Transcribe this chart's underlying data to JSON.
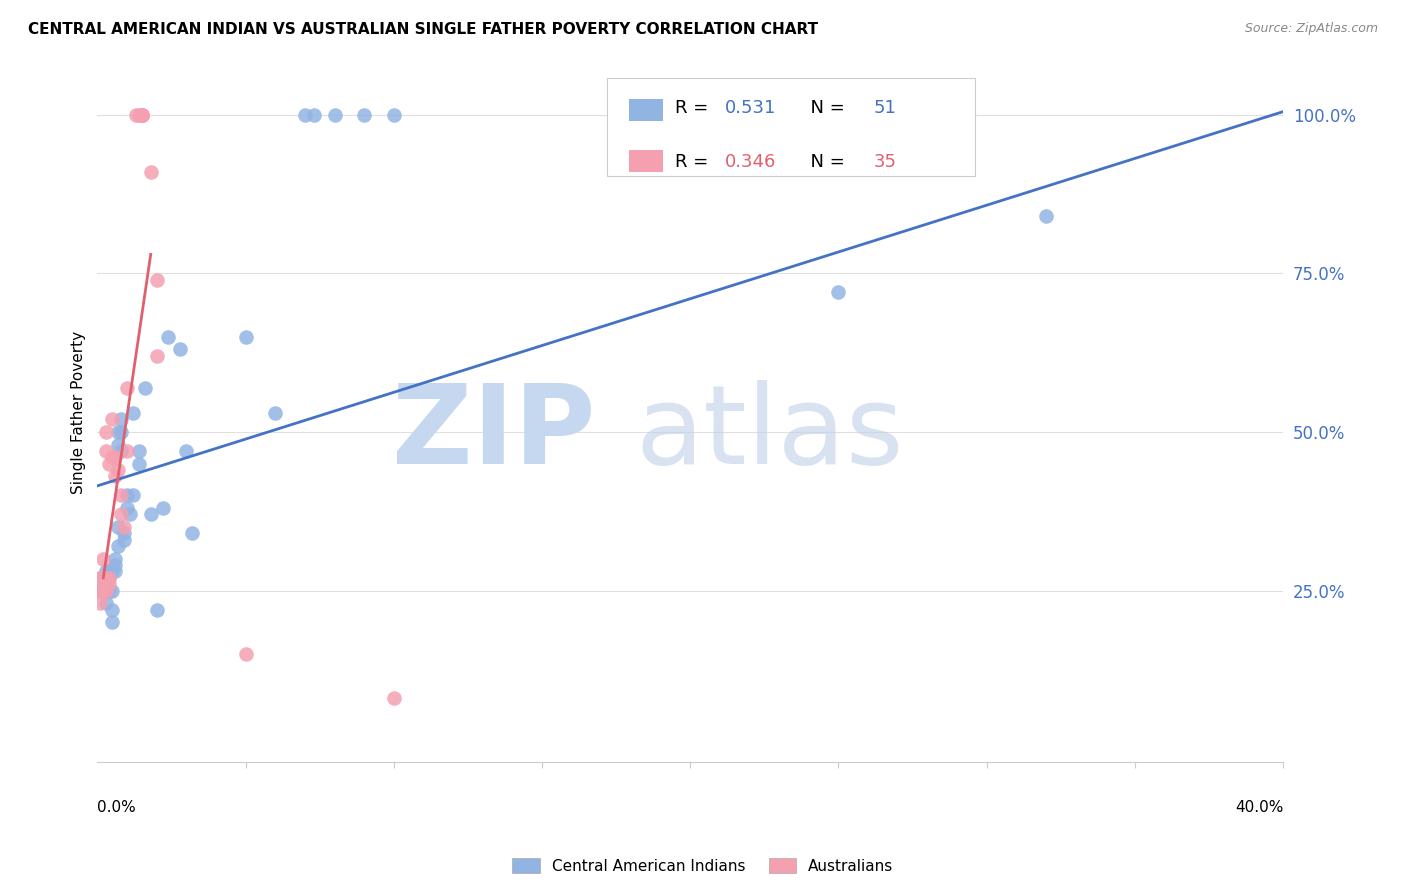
{
  "title": "CENTRAL AMERICAN INDIAN VS AUSTRALIAN SINGLE FATHER POVERTY CORRELATION CHART",
  "source": "Source: ZipAtlas.com",
  "ylabel": "Single Father Poverty",
  "ytick_labels": [
    "25.0%",
    "50.0%",
    "75.0%",
    "100.0%"
  ],
  "ytick_values": [
    0.25,
    0.5,
    0.75,
    1.0
  ],
  "xlim": [
    0.0,
    0.4
  ],
  "ylim": [
    -0.02,
    1.08
  ],
  "legend_blue_r": "0.531",
  "legend_blue_n": "51",
  "legend_pink_r": "0.346",
  "legend_pink_n": "35",
  "legend_label_blue": "Central American Indians",
  "legend_label_pink": "Australians",
  "blue_color": "#92b4e3",
  "pink_color": "#f4a0b0",
  "blue_line_color": "#4472c4",
  "pink_line_color": "#e06070",
  "grid_color": "#e0e0e0",
  "blue_scatter": [
    [
      0.001,
      0.27
    ],
    [
      0.001,
      0.25
    ],
    [
      0.002,
      0.27
    ],
    [
      0.002,
      0.25
    ],
    [
      0.003,
      0.27
    ],
    [
      0.003,
      0.25
    ],
    [
      0.003,
      0.23
    ],
    [
      0.003,
      0.28
    ],
    [
      0.004,
      0.27
    ],
    [
      0.004,
      0.25
    ],
    [
      0.004,
      0.28
    ],
    [
      0.005,
      0.28
    ],
    [
      0.005,
      0.25
    ],
    [
      0.005,
      0.22
    ],
    [
      0.005,
      0.2
    ],
    [
      0.006,
      0.3
    ],
    [
      0.006,
      0.28
    ],
    [
      0.006,
      0.29
    ],
    [
      0.007,
      0.32
    ],
    [
      0.007,
      0.35
    ],
    [
      0.007,
      0.48
    ],
    [
      0.007,
      0.5
    ],
    [
      0.008,
      0.47
    ],
    [
      0.008,
      0.5
    ],
    [
      0.008,
      0.52
    ],
    [
      0.009,
      0.33
    ],
    [
      0.009,
      0.34
    ],
    [
      0.01,
      0.38
    ],
    [
      0.01,
      0.4
    ],
    [
      0.011,
      0.37
    ],
    [
      0.012,
      0.4
    ],
    [
      0.012,
      0.53
    ],
    [
      0.014,
      0.45
    ],
    [
      0.014,
      0.47
    ],
    [
      0.016,
      0.57
    ],
    [
      0.018,
      0.37
    ],
    [
      0.02,
      0.22
    ],
    [
      0.022,
      0.38
    ],
    [
      0.024,
      0.65
    ],
    [
      0.028,
      0.63
    ],
    [
      0.03,
      0.47
    ],
    [
      0.032,
      0.34
    ],
    [
      0.05,
      0.65
    ],
    [
      0.06,
      0.53
    ],
    [
      0.07,
      1.0
    ],
    [
      0.073,
      1.0
    ],
    [
      0.08,
      1.0
    ],
    [
      0.09,
      1.0
    ],
    [
      0.1,
      1.0
    ],
    [
      0.25,
      0.72
    ],
    [
      0.32,
      0.84
    ]
  ],
  "pink_scatter": [
    [
      0.001,
      0.27
    ],
    [
      0.001,
      0.25
    ],
    [
      0.001,
      0.23
    ],
    [
      0.002,
      0.3
    ],
    [
      0.002,
      0.27
    ],
    [
      0.002,
      0.25
    ],
    [
      0.003,
      0.27
    ],
    [
      0.003,
      0.25
    ],
    [
      0.003,
      0.5
    ],
    [
      0.003,
      0.47
    ],
    [
      0.004,
      0.27
    ],
    [
      0.004,
      0.26
    ],
    [
      0.004,
      0.45
    ],
    [
      0.005,
      0.52
    ],
    [
      0.005,
      0.46
    ],
    [
      0.006,
      0.46
    ],
    [
      0.006,
      0.43
    ],
    [
      0.007,
      0.44
    ],
    [
      0.008,
      0.4
    ],
    [
      0.008,
      0.37
    ],
    [
      0.009,
      0.35
    ],
    [
      0.01,
      0.57
    ],
    [
      0.01,
      0.47
    ],
    [
      0.013,
      1.0
    ],
    [
      0.014,
      1.0
    ],
    [
      0.015,
      1.0
    ],
    [
      0.015,
      1.0
    ],
    [
      0.015,
      1.0
    ],
    [
      0.015,
      1.0
    ],
    [
      0.015,
      1.0
    ],
    [
      0.018,
      0.91
    ],
    [
      0.02,
      0.74
    ],
    [
      0.02,
      0.62
    ],
    [
      0.05,
      0.15
    ],
    [
      0.1,
      0.08
    ]
  ],
  "blue_trendline_x": [
    0.0,
    0.4
  ],
  "blue_trendline_y": [
    0.415,
    1.005
  ],
  "pink_trendline_x": [
    0.002,
    0.018
  ],
  "pink_trendline_y": [
    0.27,
    0.78
  ]
}
